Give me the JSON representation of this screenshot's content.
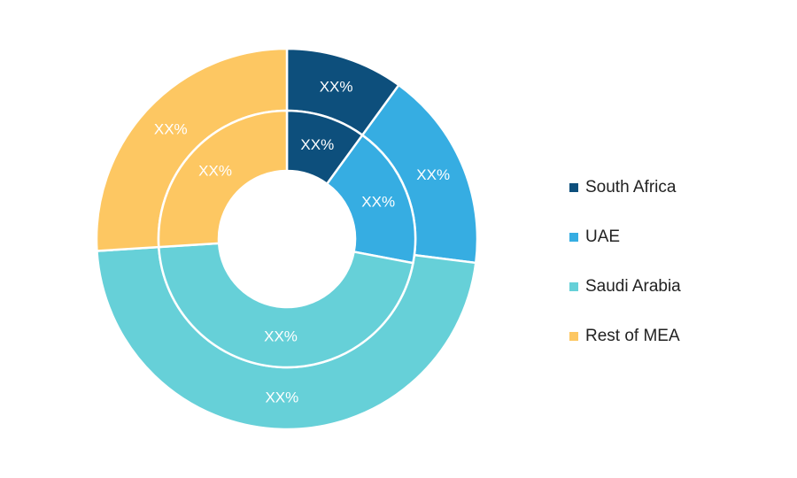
{
  "chart_data": {
    "type": "donut",
    "categories": [
      "South Africa",
      "UAE",
      "Saudi Arabia",
      "Rest of MEA"
    ],
    "colors": [
      "#0d4f7c",
      "#36ade2",
      "#66d0d8",
      "#fdc762"
    ],
    "series": [
      {
        "values": [
          10,
          17,
          47,
          26
        ],
        "value_labels": [
          "XX%",
          "XX%",
          "XX%",
          "XX%"
        ]
      },
      {
        "values": [
          10,
          18,
          46,
          26
        ],
        "value_labels": [
          "XX%",
          "XX%",
          "XX%",
          "XX%"
        ]
      }
    ],
    "legend": "right"
  }
}
